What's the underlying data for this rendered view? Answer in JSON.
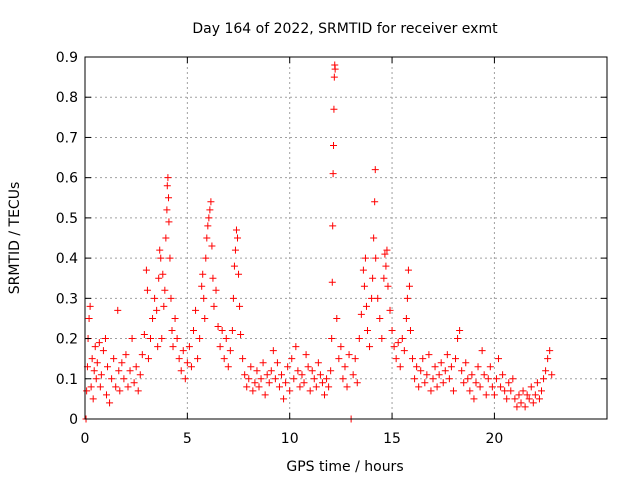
{
  "chart_data": {
    "type": "scatter",
    "title": "Day 164 of 2022, SRMTID for receiver exmt",
    "xlabel": "GPS time / hours",
    "ylabel": "SRMTID / TECUs",
    "xlim": [
      0,
      25.5
    ],
    "ylim": [
      0,
      0.9
    ],
    "xticks": [
      0,
      5,
      10,
      15,
      20
    ],
    "xtick_labels": [
      "0",
      "5",
      "10",
      "15",
      "20"
    ],
    "yticks": [
      0,
      0.1,
      0.2,
      0.3,
      0.4,
      0.5,
      0.6,
      0.7,
      0.8,
      0.9
    ],
    "ytick_labels": [
      "0",
      "0.1",
      "0.2",
      "0.3",
      "0.4",
      "0.5",
      "0.6",
      "0.7",
      "0.8",
      "0.9"
    ],
    "grid": true,
    "marker": "plus",
    "color": "#ff0000",
    "series": [
      {
        "name": "SRMTID",
        "points": [
          [
            0.05,
            0.0
          ],
          [
            0.08,
            0.07
          ],
          [
            0.12,
            0.13
          ],
          [
            0.15,
            0.2
          ],
          [
            0.2,
            0.25
          ],
          [
            0.25,
            0.28
          ],
          [
            0.3,
            0.08
          ],
          [
            0.35,
            0.15
          ],
          [
            0.4,
            0.05
          ],
          [
            0.45,
            0.12
          ],
          [
            0.5,
            0.18
          ],
          [
            0.55,
            0.1
          ],
          [
            0.6,
            0.14
          ],
          [
            0.7,
            0.19
          ],
          [
            0.75,
            0.08
          ],
          [
            0.8,
            0.11
          ],
          [
            0.9,
            0.17
          ],
          [
            1.0,
            0.2
          ],
          [
            1.05,
            0.06
          ],
          [
            1.1,
            0.13
          ],
          [
            1.2,
            0.04
          ],
          [
            1.3,
            0.1
          ],
          [
            1.4,
            0.15
          ],
          [
            1.5,
            0.08
          ],
          [
            1.6,
            0.27
          ],
          [
            1.65,
            0.12
          ],
          [
            1.7,
            0.07
          ],
          [
            1.8,
            0.14
          ],
          [
            1.9,
            0.1
          ],
          [
            2.0,
            0.16
          ],
          [
            2.1,
            0.08
          ],
          [
            2.2,
            0.12
          ],
          [
            2.3,
            0.2
          ],
          [
            2.4,
            0.09
          ],
          [
            2.5,
            0.13
          ],
          [
            2.6,
            0.07
          ],
          [
            2.7,
            0.11
          ],
          [
            2.8,
            0.16
          ],
          [
            2.9,
            0.21
          ],
          [
            3.0,
            0.37
          ],
          [
            3.05,
            0.32
          ],
          [
            3.1,
            0.15
          ],
          [
            3.2,
            0.2
          ],
          [
            3.3,
            0.25
          ],
          [
            3.4,
            0.3
          ],
          [
            3.5,
            0.27
          ],
          [
            3.55,
            0.18
          ],
          [
            3.6,
            0.35
          ],
          [
            3.65,
            0.42
          ],
          [
            3.7,
            0.4
          ],
          [
            3.75,
            0.2
          ],
          [
            3.8,
            0.36
          ],
          [
            3.85,
            0.28
          ],
          [
            3.9,
            0.32
          ],
          [
            3.95,
            0.45
          ],
          [
            4.0,
            0.52
          ],
          [
            4.02,
            0.58
          ],
          [
            4.05,
            0.6
          ],
          [
            4.08,
            0.55
          ],
          [
            4.1,
            0.49
          ],
          [
            4.15,
            0.4
          ],
          [
            4.2,
            0.3
          ],
          [
            4.25,
            0.22
          ],
          [
            4.3,
            0.18
          ],
          [
            4.4,
            0.25
          ],
          [
            4.5,
            0.2
          ],
          [
            4.6,
            0.15
          ],
          [
            4.7,
            0.12
          ],
          [
            4.8,
            0.17
          ],
          [
            4.9,
            0.1
          ],
          [
            5.0,
            0.14
          ],
          [
            5.1,
            0.18
          ],
          [
            5.2,
            0.13
          ],
          [
            5.3,
            0.22
          ],
          [
            5.4,
            0.27
          ],
          [
            5.5,
            0.15
          ],
          [
            5.6,
            0.2
          ],
          [
            5.7,
            0.33
          ],
          [
            5.75,
            0.36
          ],
          [
            5.8,
            0.3
          ],
          [
            5.85,
            0.25
          ],
          [
            5.9,
            0.4
          ],
          [
            5.95,
            0.45
          ],
          [
            6.0,
            0.48
          ],
          [
            6.05,
            0.5
          ],
          [
            6.1,
            0.52
          ],
          [
            6.15,
            0.54
          ],
          [
            6.2,
            0.43
          ],
          [
            6.25,
            0.35
          ],
          [
            6.3,
            0.28
          ],
          [
            6.4,
            0.32
          ],
          [
            6.5,
            0.23
          ],
          [
            6.6,
            0.18
          ],
          [
            6.7,
            0.22
          ],
          [
            6.8,
            0.15
          ],
          [
            6.9,
            0.2
          ],
          [
            7.0,
            0.13
          ],
          [
            7.1,
            0.17
          ],
          [
            7.2,
            0.22
          ],
          [
            7.25,
            0.3
          ],
          [
            7.3,
            0.38
          ],
          [
            7.35,
            0.42
          ],
          [
            7.4,
            0.47
          ],
          [
            7.45,
            0.45
          ],
          [
            7.5,
            0.36
          ],
          [
            7.55,
            0.28
          ],
          [
            7.6,
            0.21
          ],
          [
            7.7,
            0.15
          ],
          [
            7.8,
            0.11
          ],
          [
            7.9,
            0.08
          ],
          [
            8.0,
            0.1
          ],
          [
            8.1,
            0.13
          ],
          [
            8.2,
            0.07
          ],
          [
            8.3,
            0.09
          ],
          [
            8.4,
            0.12
          ],
          [
            8.5,
            0.08
          ],
          [
            8.6,
            0.1
          ],
          [
            8.7,
            0.14
          ],
          [
            8.8,
            0.06
          ],
          [
            8.9,
            0.11
          ],
          [
            9.0,
            0.09
          ],
          [
            9.1,
            0.12
          ],
          [
            9.2,
            0.17
          ],
          [
            9.3,
            0.1
          ],
          [
            9.4,
            0.14
          ],
          [
            9.5,
            0.08
          ],
          [
            9.6,
            0.11
          ],
          [
            9.7,
            0.05
          ],
          [
            9.8,
            0.09
          ],
          [
            9.9,
            0.13
          ],
          [
            10.0,
            0.07
          ],
          [
            10.1,
            0.15
          ],
          [
            10.2,
            0.1
          ],
          [
            10.3,
            0.18
          ],
          [
            10.4,
            0.12
          ],
          [
            10.5,
            0.08
          ],
          [
            10.6,
            0.11
          ],
          [
            10.7,
            0.09
          ],
          [
            10.8,
            0.16
          ],
          [
            10.9,
            0.13
          ],
          [
            11.0,
            0.07
          ],
          [
            11.1,
            0.12
          ],
          [
            11.2,
            0.1
          ],
          [
            11.3,
            0.08
          ],
          [
            11.4,
            0.14
          ],
          [
            11.5,
            0.11
          ],
          [
            11.6,
            0.09
          ],
          [
            11.7,
            0.06
          ],
          [
            11.8,
            0.1
          ],
          [
            11.9,
            0.08
          ],
          [
            12.0,
            0.12
          ],
          [
            12.05,
            0.2
          ],
          [
            12.08,
            0.34
          ],
          [
            12.1,
            0.48
          ],
          [
            12.12,
            0.61
          ],
          [
            12.14,
            0.68
          ],
          [
            12.16,
            0.77
          ],
          [
            12.18,
            0.85
          ],
          [
            12.2,
            0.88
          ],
          [
            12.22,
            0.87
          ],
          [
            12.3,
            0.25
          ],
          [
            12.4,
            0.15
          ],
          [
            12.5,
            0.18
          ],
          [
            12.6,
            0.1
          ],
          [
            12.7,
            0.13
          ],
          [
            12.8,
            0.08
          ],
          [
            12.9,
            0.16
          ],
          [
            13.0,
            0.0
          ],
          [
            13.1,
            0.11
          ],
          [
            13.2,
            0.15
          ],
          [
            13.3,
            0.09
          ],
          [
            13.4,
            0.2
          ],
          [
            13.5,
            0.26
          ],
          [
            13.6,
            0.37
          ],
          [
            13.65,
            0.33
          ],
          [
            13.7,
            0.4
          ],
          [
            13.75,
            0.28
          ],
          [
            13.8,
            0.22
          ],
          [
            13.9,
            0.18
          ],
          [
            14.0,
            0.3
          ],
          [
            14.05,
            0.35
          ],
          [
            14.1,
            0.45
          ],
          [
            14.15,
            0.54
          ],
          [
            14.18,
            0.62
          ],
          [
            14.2,
            0.4
          ],
          [
            14.3,
            0.3
          ],
          [
            14.4,
            0.25
          ],
          [
            14.5,
            0.2
          ],
          [
            14.6,
            0.35
          ],
          [
            14.65,
            0.41
          ],
          [
            14.7,
            0.38
          ],
          [
            14.75,
            0.42
          ],
          [
            14.8,
            0.33
          ],
          [
            14.9,
            0.27
          ],
          [
            15.0,
            0.22
          ],
          [
            15.1,
            0.18
          ],
          [
            15.2,
            0.15
          ],
          [
            15.3,
            0.19
          ],
          [
            15.4,
            0.13
          ],
          [
            15.5,
            0.2
          ],
          [
            15.6,
            0.17
          ],
          [
            15.7,
            0.25
          ],
          [
            15.75,
            0.3
          ],
          [
            15.8,
            0.37
          ],
          [
            15.85,
            0.33
          ],
          [
            15.9,
            0.22
          ],
          [
            16.0,
            0.15
          ],
          [
            16.1,
            0.1
          ],
          [
            16.2,
            0.13
          ],
          [
            16.3,
            0.08
          ],
          [
            16.4,
            0.12
          ],
          [
            16.5,
            0.15
          ],
          [
            16.6,
            0.09
          ],
          [
            16.7,
            0.11
          ],
          [
            16.8,
            0.16
          ],
          [
            16.9,
            0.07
          ],
          [
            17.0,
            0.1
          ],
          [
            17.1,
            0.13
          ],
          [
            17.2,
            0.08
          ],
          [
            17.3,
            0.11
          ],
          [
            17.4,
            0.14
          ],
          [
            17.5,
            0.09
          ],
          [
            17.6,
            0.12
          ],
          [
            17.7,
            0.16
          ],
          [
            17.8,
            0.1
          ],
          [
            17.9,
            0.13
          ],
          [
            18.0,
            0.07
          ],
          [
            18.1,
            0.15
          ],
          [
            18.2,
            0.2
          ],
          [
            18.3,
            0.22
          ],
          [
            18.4,
            0.12
          ],
          [
            18.5,
            0.09
          ],
          [
            18.6,
            0.14
          ],
          [
            18.7,
            0.1
          ],
          [
            18.8,
            0.07
          ],
          [
            18.9,
            0.11
          ],
          [
            19.0,
            0.05
          ],
          [
            19.1,
            0.09
          ],
          [
            19.2,
            0.13
          ],
          [
            19.3,
            0.08
          ],
          [
            19.4,
            0.17
          ],
          [
            19.5,
            0.11
          ],
          [
            19.6,
            0.06
          ],
          [
            19.7,
            0.1
          ],
          [
            19.8,
            0.13
          ],
          [
            19.9,
            0.08
          ],
          [
            20.0,
            0.06
          ],
          [
            20.1,
            0.1
          ],
          [
            20.2,
            0.15
          ],
          [
            20.3,
            0.08
          ],
          [
            20.4,
            0.11
          ],
          [
            20.5,
            0.07
          ],
          [
            20.6,
            0.05
          ],
          [
            20.7,
            0.09
          ],
          [
            20.8,
            0.07
          ],
          [
            20.9,
            0.1
          ],
          [
            21.0,
            0.05
          ],
          [
            21.1,
            0.03
          ],
          [
            21.2,
            0.06
          ],
          [
            21.3,
            0.04
          ],
          [
            21.4,
            0.07
          ],
          [
            21.5,
            0.03
          ],
          [
            21.6,
            0.06
          ],
          [
            21.7,
            0.05
          ],
          [
            21.8,
            0.08
          ],
          [
            21.9,
            0.04
          ],
          [
            22.0,
            0.06
          ],
          [
            22.1,
            0.09
          ],
          [
            22.2,
            0.05
          ],
          [
            22.3,
            0.07
          ],
          [
            22.4,
            0.1
          ],
          [
            22.5,
            0.12
          ],
          [
            22.6,
            0.15
          ],
          [
            22.7,
            0.17
          ],
          [
            22.8,
            0.11
          ]
        ]
      }
    ]
  }
}
